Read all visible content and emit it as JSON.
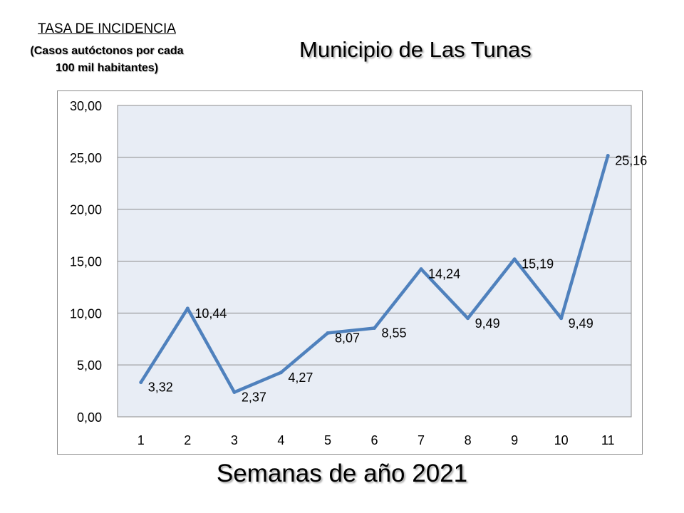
{
  "header": {
    "side_title_line1": "TASA DE INCIDENCIA",
    "side_title_line2": "(Casos autóctonos por cada",
    "side_title_line3": "100 mil habitantes)",
    "main_title": "Municipio de Las Tunas"
  },
  "chart_data": {
    "type": "line",
    "title": "Municipio de Las Tunas",
    "xlabel": "Semanas de año 2021",
    "ylabel": "TASA DE INCIDENCIA (Casos autóctonos por cada 100 mil habitantes)",
    "categories": [
      "1",
      "2",
      "3",
      "4",
      "5",
      "6",
      "7",
      "8",
      "9",
      "10",
      "11"
    ],
    "series": [
      {
        "values": [
          3.32,
          10.44,
          2.37,
          4.27,
          8.07,
          8.55,
          14.24,
          9.49,
          15.19,
          9.49,
          25.16
        ],
        "labels": [
          "3,32",
          "10,44",
          "2,37",
          "4,27",
          "8,07",
          "8,55",
          "14,24",
          "9,49",
          "15,19",
          "9,49",
          "25,16"
        ]
      }
    ],
    "ylim": [
      0,
      30
    ],
    "yticks": [
      "0,00",
      "5,00",
      "10,00",
      "15,00",
      "20,00",
      "25,00",
      "30,00"
    ],
    "grid": true,
    "legend": "none",
    "line_color": "#4f81bd",
    "plot_background": "#e8edf5"
  }
}
